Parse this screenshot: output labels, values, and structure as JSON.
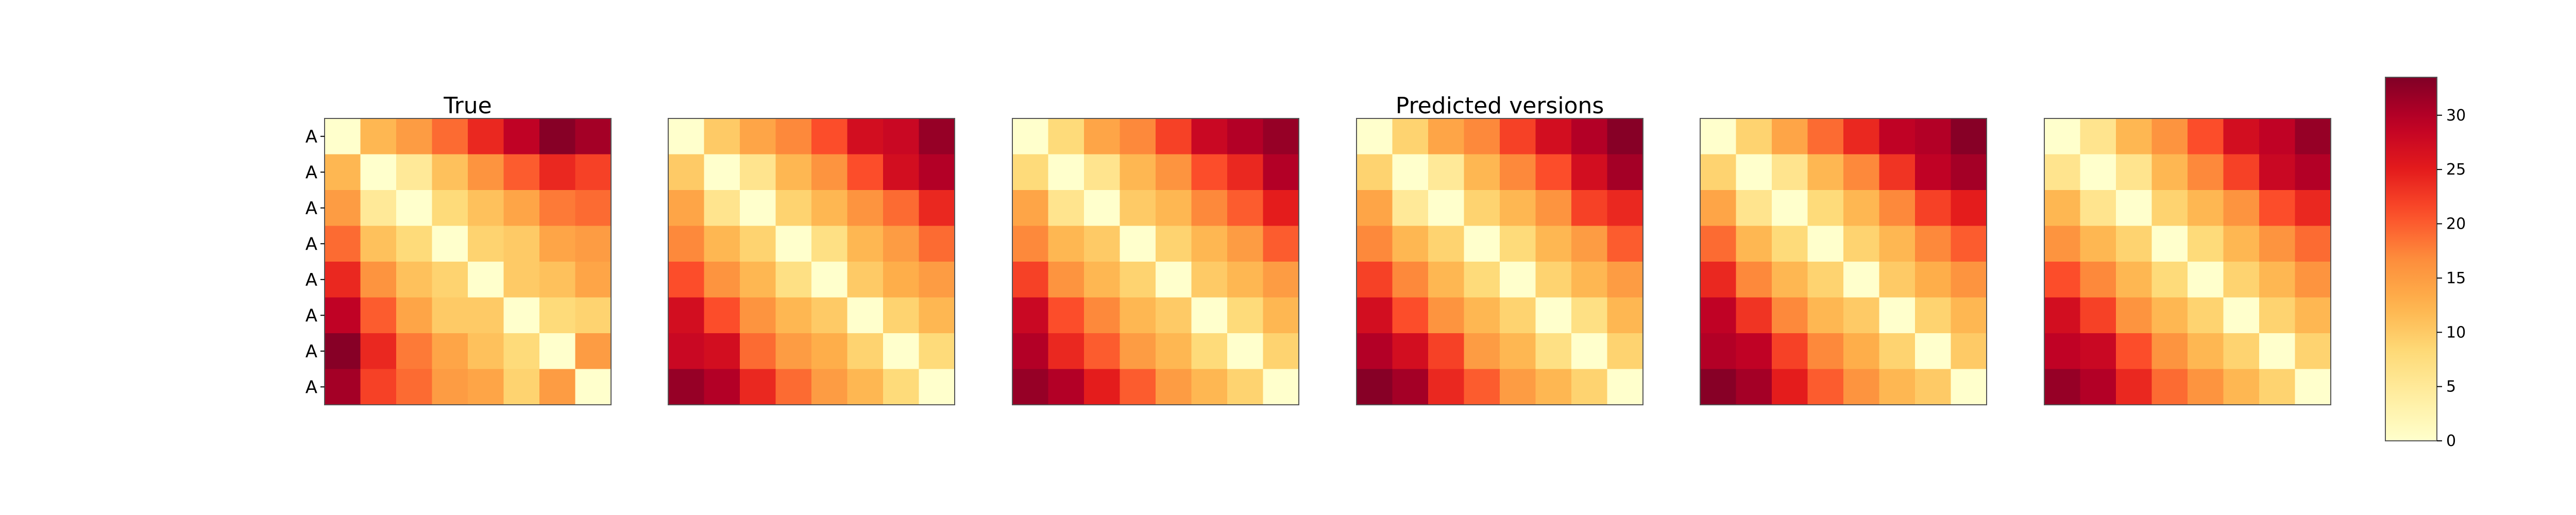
{
  "chart_data": {
    "type": "heatmap",
    "colormap": "YlOrRd",
    "panel_titles": [
      "True",
      "",
      "",
      "Predicted versions",
      "",
      ""
    ],
    "row_labels": [
      "A",
      "A",
      "A",
      "A",
      "A",
      "A",
      "A",
      "A"
    ],
    "vmin": 0,
    "vmax": 33.5,
    "colorbar_ticks": [
      0,
      5,
      10,
      15,
      20,
      25,
      30
    ],
    "matrices": [
      [
        [
          0,
          12,
          15,
          19,
          24,
          29,
          33,
          31
        ],
        [
          12,
          0,
          5,
          11,
          16,
          20,
          24,
          22
        ],
        [
          15,
          5,
          0,
          8,
          11,
          14,
          18,
          19
        ],
        [
          19,
          11,
          8,
          0,
          9,
          10,
          14,
          15
        ],
        [
          24,
          16,
          11,
          9,
          0,
          10,
          11,
          14
        ],
        [
          29,
          20,
          14,
          10,
          10,
          0,
          8,
          9
        ],
        [
          33,
          24,
          18,
          14,
          11,
          8,
          0,
          15
        ],
        [
          31,
          22,
          19,
          15,
          14,
          9,
          15,
          0
        ]
      ],
      [
        [
          0,
          10,
          14,
          17,
          21,
          27,
          28,
          32
        ],
        [
          10,
          0,
          6,
          12,
          16,
          21,
          27,
          30
        ],
        [
          14,
          6,
          0,
          9,
          12,
          16,
          19,
          24
        ],
        [
          17,
          12,
          9,
          0,
          7,
          12,
          15,
          19
        ],
        [
          21,
          16,
          12,
          7,
          0,
          10,
          13,
          15
        ],
        [
          27,
          21,
          16,
          12,
          10,
          0,
          9,
          12
        ],
        [
          28,
          27,
          19,
          15,
          13,
          9,
          0,
          8
        ],
        [
          32,
          30,
          24,
          19,
          15,
          12,
          8,
          0
        ]
      ],
      [
        [
          0,
          8,
          14,
          17,
          22,
          28,
          30,
          32
        ],
        [
          8,
          0,
          6,
          12,
          16,
          21,
          24,
          30
        ],
        [
          14,
          6,
          0,
          10,
          12,
          17,
          20,
          25
        ],
        [
          17,
          12,
          10,
          0,
          9,
          12,
          15,
          20
        ],
        [
          22,
          16,
          12,
          9,
          0,
          10,
          12,
          15
        ],
        [
          28,
          21,
          17,
          12,
          10,
          0,
          8,
          12
        ],
        [
          30,
          24,
          20,
          15,
          12,
          8,
          0,
          9
        ],
        [
          32,
          30,
          25,
          20,
          15,
          12,
          9,
          0
        ]
      ],
      [
        [
          0,
          9,
          14,
          17,
          22,
          27,
          30,
          33
        ],
        [
          9,
          0,
          5,
          12,
          17,
          21,
          27,
          31
        ],
        [
          14,
          5,
          0,
          9,
          12,
          16,
          22,
          24
        ],
        [
          17,
          12,
          9,
          0,
          8,
          12,
          15,
          20
        ],
        [
          22,
          17,
          12,
          8,
          0,
          9,
          12,
          15
        ],
        [
          27,
          21,
          16,
          12,
          9,
          0,
          7,
          12
        ],
        [
          30,
          27,
          22,
          15,
          12,
          7,
          0,
          9
        ],
        [
          33,
          31,
          24,
          20,
          15,
          12,
          9,
          0
        ]
      ],
      [
        [
          0,
          9,
          14,
          19,
          24,
          29,
          30,
          33
        ],
        [
          9,
          0,
          6,
          12,
          17,
          23,
          29,
          31
        ],
        [
          14,
          6,
          0,
          8,
          12,
          17,
          22,
          25
        ],
        [
          19,
          12,
          8,
          0,
          9,
          12,
          17,
          20
        ],
        [
          24,
          17,
          12,
          9,
          0,
          10,
          13,
          16
        ],
        [
          29,
          23,
          17,
          12,
          10,
          0,
          9,
          12
        ],
        [
          30,
          29,
          22,
          17,
          13,
          9,
          0,
          10
        ],
        [
          33,
          31,
          25,
          20,
          16,
          12,
          10,
          0
        ]
      ],
      [
        [
          0,
          6,
          12,
          16,
          21,
          27,
          29,
          32
        ],
        [
          6,
          0,
          6,
          12,
          17,
          22,
          28,
          30
        ],
        [
          12,
          6,
          0,
          9,
          12,
          16,
          21,
          24
        ],
        [
          16,
          12,
          9,
          0,
          8,
          12,
          16,
          19
        ],
        [
          21,
          17,
          12,
          8,
          0,
          9,
          12,
          16
        ],
        [
          27,
          22,
          16,
          12,
          9,
          0,
          9,
          12
        ],
        [
          29,
          28,
          21,
          16,
          12,
          9,
          0,
          9
        ],
        [
          32,
          30,
          24,
          19,
          16,
          12,
          9,
          0
        ]
      ]
    ]
  }
}
